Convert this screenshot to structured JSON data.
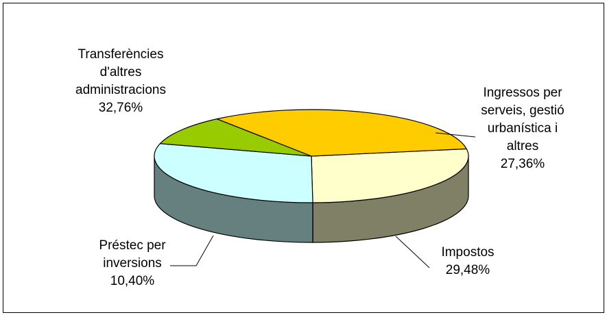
{
  "chart_data": {
    "type": "pie",
    "variant": "3d",
    "title": "",
    "slices": [
      {
        "label": "Ingressos per serveis, gestió urbanística i altres",
        "value": 27.36,
        "label_lines": [
          "Ingressos per",
          "serveis, gestió",
          "urbanística i",
          "altres"
        ],
        "value_label": "27,36%",
        "top_color": "#FFFFCC",
        "side_color": "#808066"
      },
      {
        "label": "Impostos",
        "value": 29.48,
        "label_lines": [
          "Impostos"
        ],
        "value_label": "29,48%",
        "top_color": "#CCFFFF",
        "side_color": "#668080"
      },
      {
        "label": "Préstec per inversions",
        "value": 10.4,
        "label_lines": [
          "Préstec per",
          "inversions"
        ],
        "value_label": "10,40%",
        "top_color": "#99CC00",
        "side_color": "#4D6600"
      },
      {
        "label": "Transferències d'altres administracions",
        "value": 32.76,
        "label_lines": [
          "Transferències",
          "d'altres",
          "administracions"
        ],
        "value_label": "32,76%",
        "top_color": "#FFCC00",
        "side_color": "#806600"
      }
    ],
    "colors": {
      "edge": "#000000",
      "leader": "#000000"
    }
  }
}
